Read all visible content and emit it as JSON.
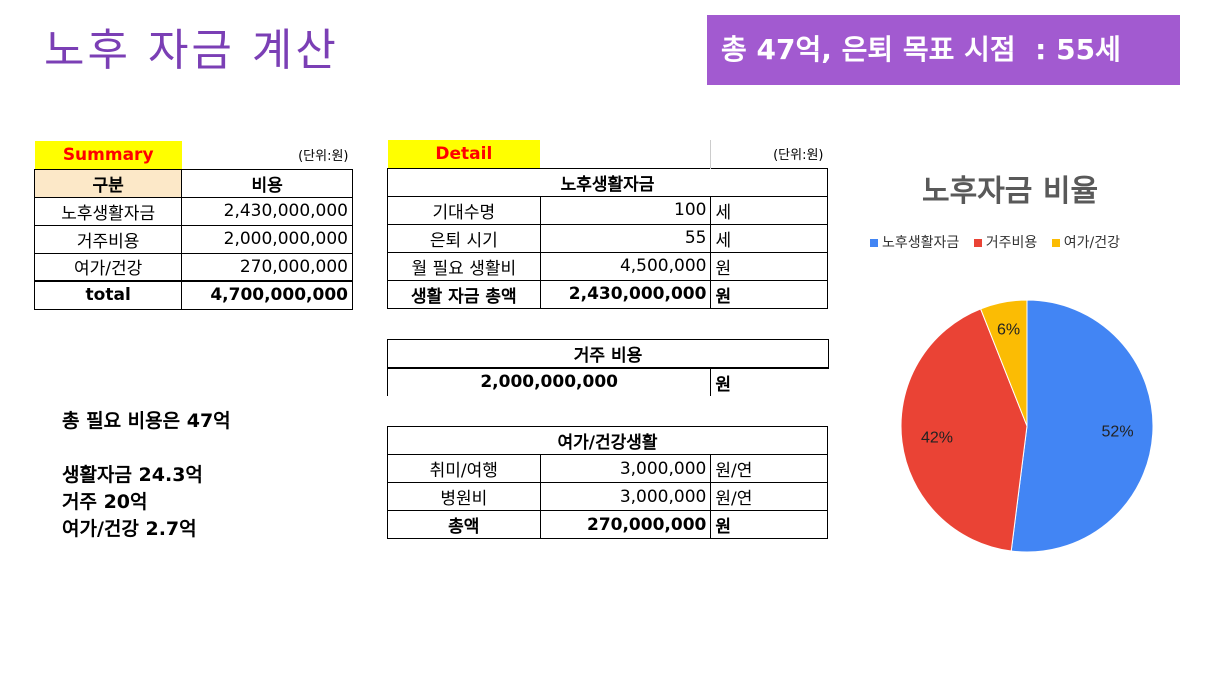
{
  "title": "노후 자금 계산",
  "banner": "총 47억, 은퇴 목표 시점  : 55세",
  "summary": {
    "label": "Summary",
    "unit": "(단위:원)",
    "col_category": "구분",
    "col_cost": "비용",
    "rows": [
      {
        "category": "노후생활자금",
        "cost": "2,430,000,000"
      },
      {
        "category": "거주비용",
        "cost": "2,000,000,000"
      },
      {
        "category": "여가/건강",
        "cost": "270,000,000"
      }
    ],
    "total_label": "total",
    "total_value": "4,700,000,000"
  },
  "detail": {
    "label": "Detail",
    "unit": "(단위:원)",
    "living_title": "노후생활자금",
    "living_rows": [
      {
        "label": "기대수명",
        "value": "100",
        "unit": "세"
      },
      {
        "label": "은퇴 시기",
        "value": "55",
        "unit": "세"
      },
      {
        "label": "월 필요 생활비",
        "value": "4,500,000",
        "unit": "원"
      }
    ],
    "living_total": {
      "label": "생활 자금 총액",
      "value": "2,430,000,000",
      "unit": "원"
    },
    "housing_title": "거주 비용",
    "housing_value": "2,000,000,000",
    "housing_unit": "원",
    "leisure_title": "여가/건강생활",
    "leisure_rows": [
      {
        "label": "취미/여행",
        "value": "3,000,000",
        "unit": "원/연"
      },
      {
        "label": "병원비",
        "value": "3,000,000",
        "unit": "원/연"
      }
    ],
    "leisure_total": {
      "label": "총액",
      "value": "270,000,000",
      "unit": "원"
    }
  },
  "notes": {
    "line1": "총 필요 비용은 47억",
    "line2": "생활자금 24.3억",
    "line3": "거주 20억",
    "line4": "여가/건강 2.7억"
  },
  "chart_data": {
    "type": "pie",
    "title": "노후자금 비율",
    "legend_position": "top",
    "categories": [
      "노후생활자금",
      "거주비용",
      "여가/건강"
    ],
    "values": [
      52,
      42,
      6
    ],
    "labels": [
      "52%",
      "42%",
      "6%"
    ],
    "colors": [
      "#4285f4",
      "#ea4335",
      "#fbbc04"
    ]
  }
}
